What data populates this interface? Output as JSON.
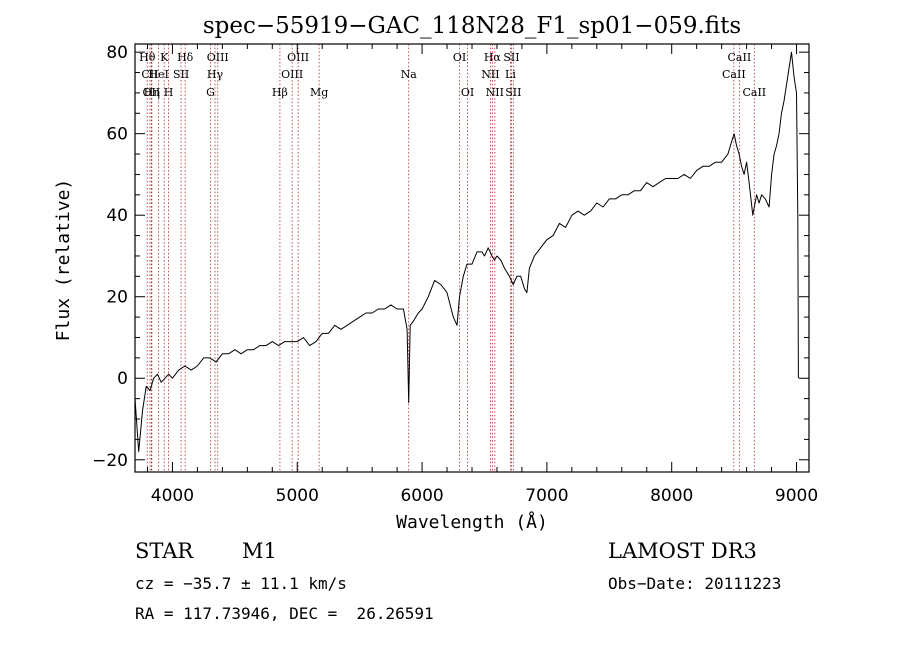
{
  "chart_data": {
    "type": "line",
    "title": "spec−55919−GAC_118N28_F1_sp01−059.fits",
    "xlabel": "Wavelength (Å)",
    "ylabel": "Flux (relative)",
    "xlim": [
      3700,
      9100
    ],
    "ylim": [
      -23,
      82
    ],
    "x_ticks": [
      {
        "value": 4000,
        "label": "4000"
      },
      {
        "value": 5000,
        "label": "5000"
      },
      {
        "value": 6000,
        "label": "6000"
      },
      {
        "value": 7000,
        "label": "7000"
      },
      {
        "value": 8000,
        "label": "8000"
      },
      {
        "value": 9000,
        "label": "9000"
      }
    ],
    "y_ticks": [
      {
        "value": -20,
        "label": "−20"
      },
      {
        "value": 0,
        "label": "0"
      },
      {
        "value": 20,
        "label": "20"
      },
      {
        "value": 40,
        "label": "40"
      },
      {
        "value": 60,
        "label": "60"
      },
      {
        "value": 80,
        "label": "80"
      }
    ],
    "spectrum": {
      "x": [
        3700,
        3730,
        3760,
        3790,
        3820,
        3850,
        3880,
        3910,
        3940,
        3970,
        4000,
        4050,
        4100,
        4150,
        4200,
        4250,
        4300,
        4350,
        4400,
        4450,
        4500,
        4550,
        4600,
        4650,
        4700,
        4750,
        4800,
        4850,
        4900,
        4950,
        5000,
        5050,
        5100,
        5150,
        5200,
        5250,
        5300,
        5350,
        5400,
        5450,
        5500,
        5550,
        5600,
        5650,
        5700,
        5750,
        5800,
        5850,
        5880,
        5893,
        5905,
        5930,
        5970,
        6000,
        6050,
        6100,
        6150,
        6200,
        6250,
        6280,
        6300,
        6330,
        6360,
        6400,
        6440,
        6480,
        6500,
        6530,
        6560,
        6580,
        6600,
        6630,
        6660,
        6700,
        6730,
        6760,
        6790,
        6820,
        6840,
        6860,
        6900,
        6950,
        7000,
        7050,
        7100,
        7150,
        7200,
        7250,
        7300,
        7350,
        7400,
        7450,
        7500,
        7550,
        7600,
        7650,
        7700,
        7750,
        7800,
        7850,
        7900,
        7950,
        8000,
        8050,
        8100,
        8150,
        8200,
        8250,
        8300,
        8350,
        8400,
        8450,
        8480,
        8500,
        8520,
        8540,
        8560,
        8580,
        8600,
        8620,
        8650,
        8680,
        8700,
        8720,
        8750,
        8780,
        8800,
        8820,
        8840,
        8860,
        8880,
        8900,
        8920,
        8940,
        8960,
        8980,
        9000,
        9010,
        9015
      ],
      "y": [
        -5,
        -18,
        -8,
        -2,
        -3,
        0,
        1,
        -1,
        0,
        1,
        0,
        2,
        3,
        2,
        3,
        5,
        5,
        4,
        6,
        6,
        7,
        6,
        7,
        7,
        8,
        8,
        9,
        8,
        9,
        9,
        9,
        10,
        8,
        9,
        11,
        11,
        13,
        12,
        13,
        14,
        15,
        16,
        16,
        17,
        17,
        18,
        17,
        17,
        12,
        -6,
        13,
        14,
        16,
        17,
        20,
        24,
        23,
        21,
        15,
        13,
        20,
        25,
        28,
        28,
        31,
        31,
        30,
        32,
        30,
        29,
        30,
        29,
        27,
        25,
        23,
        25,
        25,
        22,
        21,
        27,
        30,
        32,
        34,
        35,
        38,
        37,
        40,
        41,
        40,
        41,
        43,
        42,
        44,
        44,
        45,
        45,
        46,
        46,
        48,
        47,
        48,
        49,
        49,
        49,
        50,
        49,
        51,
        52,
        52,
        53,
        53,
        55,
        58,
        60,
        57,
        55,
        52,
        50,
        53,
        48,
        40,
        45,
        43,
        45,
        44,
        42,
        50,
        55,
        57,
        60,
        65,
        68,
        72,
        76,
        80,
        74,
        70,
        40,
        0
      ]
    },
    "lines": [
      {
        "name": "Hθ",
        "wavelength": 3798,
        "row": 1
      },
      {
        "name": "CII",
        "wavelength": 3820,
        "row": 2
      },
      {
        "name": "OII",
        "wavelength": 3831,
        "row": 3
      },
      {
        "name": "Hη",
        "wavelength": 3835,
        "row": 3
      },
      {
        "name": "HeI",
        "wavelength": 3889,
        "row": 2
      },
      {
        "name": "K",
        "wavelength": 3934,
        "row": 1
      },
      {
        "name": "H",
        "wavelength": 3969,
        "row": 3
      },
      {
        "name": "SII",
        "wavelength": 4069,
        "row": 2
      },
      {
        "name": "Hδ",
        "wavelength": 4102,
        "row": 1
      },
      {
        "name": "G",
        "wavelength": 4305,
        "row": 3
      },
      {
        "name": "Hγ",
        "wavelength": 4341,
        "row": 2
      },
      {
        "name": "OIII",
        "wavelength": 4363,
        "row": 1
      },
      {
        "name": "Hβ",
        "wavelength": 4861,
        "row": 3
      },
      {
        "name": "OIII",
        "wavelength": 4959,
        "row": 2
      },
      {
        "name": "OIII",
        "wavelength": 5007,
        "row": 1
      },
      {
        "name": "Mg",
        "wavelength": 5175,
        "row": 3
      },
      {
        "name": "Na",
        "wavelength": 5893,
        "row": 2
      },
      {
        "name": "OI",
        "wavelength": 6300,
        "row": 1
      },
      {
        "name": "OI",
        "wavelength": 6364,
        "row": 3
      },
      {
        "name": "NII",
        "wavelength": 6548,
        "row": 2
      },
      {
        "name": "Hα",
        "wavelength": 6563,
        "row": 1
      },
      {
        "name": "NII",
        "wavelength": 6583,
        "row": 3
      },
      {
        "name": "Li",
        "wavelength": 6708,
        "row": 2
      },
      {
        "name": "SII",
        "wavelength": 6716,
        "row": 1
      },
      {
        "name": "SII",
        "wavelength": 6731,
        "row": 3
      },
      {
        "name": "CaII",
        "wavelength": 8498,
        "row": 2
      },
      {
        "name": "CaII",
        "wavelength": 8542,
        "row": 1
      },
      {
        "name": "CaII",
        "wavelength": 8662,
        "row": 3
      }
    ]
  },
  "info": {
    "object_class": "STAR",
    "subclass": "M1",
    "survey": "LAMOST DR3",
    "cz": "cz = −35.7 ± 11.1 km/s",
    "obs_date": "Obs−Date: 20111223",
    "coords": "RA = 117.73946, DEC =  26.26591"
  },
  "colors": {
    "spectrum": "#000000",
    "line_markers": "#aa3333",
    "axes": "#000000",
    "background": "#ffffff"
  }
}
